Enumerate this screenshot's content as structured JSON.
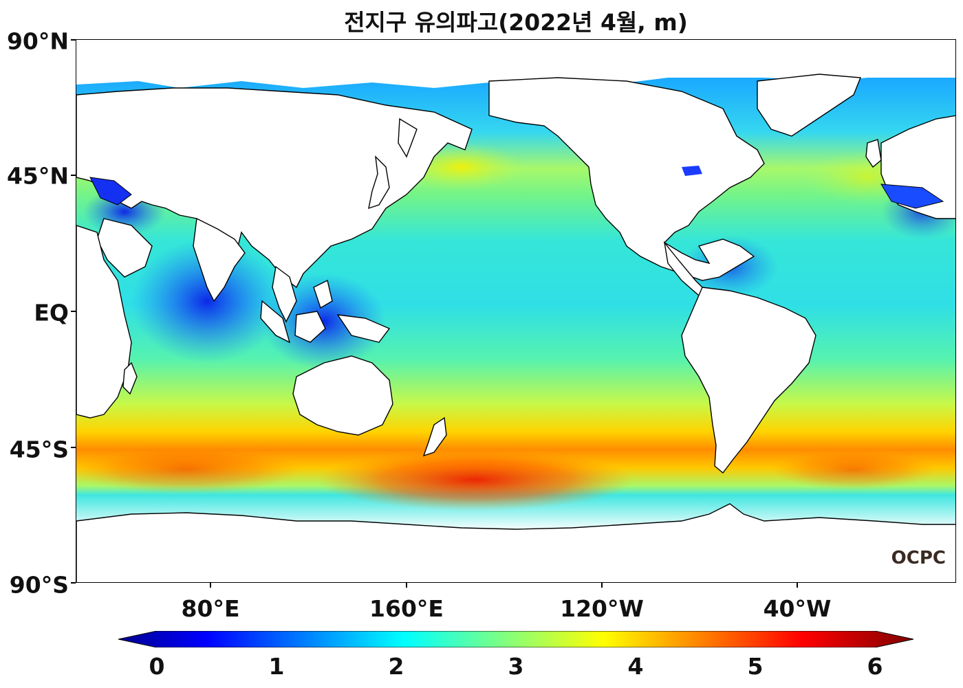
{
  "title": "전지구 유의파고(2022년 4월, m)",
  "lat_labels": [
    "90°N",
    "45°N",
    "EQ",
    "45°S",
    "90°S"
  ],
  "lon_labels": [
    "80°E",
    "160°E",
    "120°W",
    "40°W"
  ],
  "colorbar": {
    "ticks": [
      "0",
      "1",
      "2",
      "3",
      "4",
      "5",
      "6"
    ],
    "min": 0,
    "max": 6,
    "colormap": "jet",
    "extend": "both"
  },
  "logo": "OCPC"
}
